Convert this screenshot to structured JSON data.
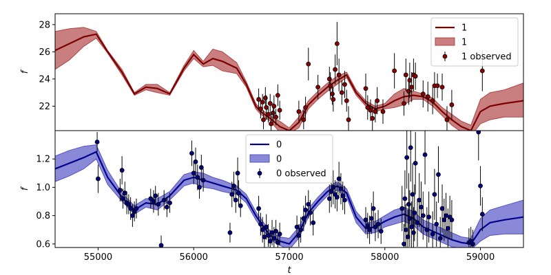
{
  "chart_data": [
    {
      "type": "line",
      "panel": "top",
      "xlabel": "",
      "ylabel": "f",
      "xlim": [
        54550,
        59450
      ],
      "ylim": [
        20.2,
        28.8
      ],
      "yticks": [
        22,
        24,
        26,
        28
      ],
      "colors": {
        "line": "#7b0000",
        "band": "#a52a2a",
        "points": "#8b0000"
      },
      "legend": {
        "placement": "top-right",
        "entries": [
          "1",
          "1",
          "1 observed"
        ]
      },
      "series": [
        {
          "name": "1",
          "kind": "mean",
          "x": [
            54550,
            54700,
            54850,
            54980,
            55100,
            55250,
            55380,
            55500,
            55620,
            55750,
            55900,
            56000,
            56100,
            56200,
            56300,
            56450,
            56550,
            56650,
            56700,
            56800,
            56900,
            57000,
            57100,
            57200,
            57300,
            57400,
            57500,
            57600,
            57700,
            57800,
            57900,
            58000,
            58100,
            58200,
            58300,
            58400,
            58500,
            58600,
            58700,
            58800,
            58900,
            59000,
            59100,
            59250,
            59450
          ],
          "y": [
            26.1,
            26.6,
            27.1,
            27.3,
            26.0,
            24.5,
            22.9,
            23.4,
            23.3,
            22.9,
            24.8,
            25.8,
            25.1,
            25.5,
            25.3,
            24.8,
            23.6,
            22.0,
            21.6,
            21.1,
            20.5,
            20.2,
            20.8,
            22.1,
            22.8,
            23.4,
            23.9,
            24.3,
            23.0,
            22.2,
            21.8,
            22.0,
            22.4,
            22.7,
            22.8,
            22.7,
            22.3,
            21.6,
            21.0,
            20.5,
            20.2,
            21.6,
            22.0,
            22.2,
            22.4
          ]
        },
        {
          "name": "1",
          "kind": "band",
          "x": [
            54550,
            54700,
            54850,
            54980,
            55100,
            55250,
            55380,
            55500,
            55620,
            55750,
            55900,
            56000,
            56100,
            56200,
            56300,
            56450,
            56550,
            56650,
            56700,
            56800,
            56900,
            57000,
            57100,
            57200,
            57300,
            57400,
            57500,
            57600,
            57700,
            57800,
            57900,
            58000,
            58100,
            58200,
            58300,
            58400,
            58500,
            58600,
            58700,
            58800,
            58900,
            59000,
            59100,
            59250,
            59450
          ],
          "upper": [
            27.5,
            27.7,
            27.8,
            27.5,
            26.1,
            24.7,
            23.0,
            23.6,
            23.6,
            23.0,
            25.0,
            26.1,
            25.3,
            26.2,
            26.0,
            25.2,
            23.8,
            22.2,
            21.8,
            21.3,
            20.9,
            20.4,
            21.2,
            22.4,
            23.1,
            23.7,
            24.2,
            24.5,
            23.2,
            22.4,
            22.0,
            22.2,
            22.9,
            23.3,
            23.1,
            22.9,
            22.6,
            21.9,
            21.4,
            20.9,
            20.6,
            22.5,
            23.0,
            23.2,
            23.7
          ],
          "lower": [
            24.7,
            25.4,
            26.4,
            27.0,
            25.9,
            24.3,
            22.8,
            23.2,
            23.0,
            22.8,
            24.6,
            25.5,
            24.9,
            25.0,
            24.6,
            24.4,
            23.4,
            21.8,
            21.4,
            20.9,
            20.1,
            20.0,
            20.4,
            21.8,
            22.5,
            23.1,
            23.6,
            24.1,
            22.8,
            22.0,
            21.6,
            21.8,
            21.9,
            22.1,
            22.5,
            22.5,
            22.0,
            21.3,
            20.6,
            20.1,
            19.8,
            20.7,
            21.0,
            21.2,
            21.2
          ]
        },
        {
          "name": "1 observed",
          "kind": "points",
          "x": [
            56680,
            56700,
            56720,
            56730,
            56750,
            56760,
            56780,
            56800,
            56810,
            56830,
            56840,
            56860,
            56880,
            56900,
            57100,
            57150,
            57170,
            57200,
            57300,
            57420,
            57430,
            57450,
            57460,
            57480,
            57500,
            57520,
            57550,
            57580,
            57600,
            57620,
            57800,
            57820,
            57850,
            57870,
            57900,
            57920,
            57980,
            58100,
            58200,
            58220,
            58250,
            58260,
            58280,
            58300,
            58320,
            58400,
            58450,
            58500,
            58520,
            58550,
            58600,
            58650,
            58700,
            59020
          ],
          "y": [
            22.5,
            21.8,
            22.3,
            21.0,
            22.6,
            21.9,
            21.4,
            22.2,
            20.7,
            21.5,
            22.0,
            21.2,
            22.8,
            21.7,
            21.6,
            21.0,
            21.9,
            25.1,
            23.4,
            24.0,
            23.5,
            22.9,
            22.5,
            24.7,
            26.6,
            24.3,
            23.0,
            23.6,
            22.4,
            21.0,
            23.3,
            21.9,
            21.7,
            21.1,
            21.6,
            22.4,
            21.6,
            24.6,
            22.2,
            24.3,
            23.1,
            23.9,
            23.4,
            24.3,
            24.2,
            22.9,
            22.7,
            22.4,
            23.5,
            23.5,
            23.4,
            21.0,
            22.1,
            24.6
          ],
          "err": [
            0.8,
            0.7,
            0.6,
            0.7,
            0.8,
            0.9,
            0.6,
            0.7,
            0.8,
            0.7,
            0.8,
            0.6,
            0.8,
            0.7,
            0.8,
            0.7,
            0.8,
            1.2,
            0.9,
            0.9,
            1.0,
            0.8,
            0.9,
            1.1,
            1.6,
            1.2,
            0.9,
            1.0,
            0.8,
            1.0,
            1.1,
            0.9,
            0.8,
            0.9,
            0.8,
            1.0,
            0.9,
            1.3,
            0.9,
            1.2,
            1.0,
            1.3,
            1.1,
            1.2,
            1.0,
            1.0,
            1.1,
            1.0,
            1.0,
            0.9,
            1.0,
            1.0,
            1.1,
            1.5
          ]
        }
      ]
    },
    {
      "type": "line",
      "panel": "bottom",
      "xlabel": "t",
      "ylabel": "f",
      "xlim": [
        54550,
        59450
      ],
      "ylim": [
        0.575,
        1.4
      ],
      "yticks": [
        0.6,
        0.8,
        1.0,
        1.2
      ],
      "xticks": [
        55000,
        56000,
        57000,
        58000,
        59000
      ],
      "colors": {
        "line": "#00008b",
        "band": "#3b3bbd",
        "points": "#000080"
      },
      "legend": {
        "placement": "top-center",
        "entries": [
          "0",
          "0",
          "0 observed"
        ]
      },
      "series": [
        {
          "name": "0",
          "kind": "mean",
          "x": [
            54550,
            54700,
            54850,
            54980,
            55100,
            55250,
            55380,
            55500,
            55620,
            55750,
            55900,
            56000,
            56100,
            56200,
            56300,
            56450,
            56550,
            56650,
            56700,
            56800,
            56900,
            57000,
            57100,
            57200,
            57300,
            57400,
            57500,
            57600,
            57700,
            57800,
            57900,
            58000,
            58100,
            58200,
            58300,
            58400,
            58500,
            58600,
            58700,
            58800,
            58900,
            59000,
            59100,
            59250,
            59450
          ],
          "y": [
            1.13,
            1.17,
            1.21,
            1.25,
            1.07,
            0.93,
            0.84,
            0.89,
            0.88,
            0.94,
            1.05,
            1.07,
            1.05,
            1.03,
            1.01,
            0.98,
            0.92,
            0.8,
            0.75,
            0.66,
            0.62,
            0.6,
            0.68,
            0.82,
            0.9,
            0.97,
            1.01,
            0.96,
            0.79,
            0.71,
            0.72,
            0.76,
            0.79,
            0.81,
            0.78,
            0.72,
            0.69,
            0.66,
            0.63,
            0.61,
            0.6,
            0.7,
            0.75,
            0.77,
            0.79
          ]
        },
        {
          "name": "0",
          "kind": "band",
          "x": [
            54550,
            54700,
            54850,
            54980,
            55100,
            55250,
            55380,
            55500,
            55620,
            55750,
            55900,
            56000,
            56100,
            56200,
            56300,
            56450,
            56550,
            56650,
            56700,
            56800,
            56900,
            57000,
            57100,
            57200,
            57300,
            57400,
            57500,
            57600,
            57700,
            57800,
            57900,
            58000,
            58100,
            58200,
            58300,
            58400,
            58500,
            58600,
            58700,
            58800,
            58900,
            59000,
            59100,
            59250,
            59450
          ],
          "upper": [
            1.22,
            1.26,
            1.29,
            1.3,
            1.12,
            0.96,
            0.87,
            0.92,
            0.92,
            0.97,
            1.09,
            1.11,
            1.1,
            1.07,
            1.05,
            1.01,
            0.95,
            0.83,
            0.78,
            0.69,
            0.65,
            0.64,
            0.72,
            0.85,
            0.93,
            1.0,
            1.04,
            0.99,
            0.83,
            0.75,
            0.76,
            0.8,
            0.84,
            0.86,
            0.83,
            0.77,
            0.74,
            0.71,
            0.68,
            0.65,
            0.64,
            0.78,
            0.84,
            0.87,
            0.91
          ],
          "lower": [
            1.04,
            1.08,
            1.13,
            1.2,
            1.02,
            0.9,
            0.81,
            0.86,
            0.84,
            0.91,
            1.01,
            1.03,
            1.0,
            0.99,
            0.97,
            0.95,
            0.89,
            0.77,
            0.72,
            0.63,
            0.59,
            0.56,
            0.64,
            0.79,
            0.87,
            0.94,
            0.98,
            0.93,
            0.75,
            0.67,
            0.68,
            0.72,
            0.74,
            0.76,
            0.73,
            0.67,
            0.64,
            0.61,
            0.58,
            0.57,
            0.56,
            0.62,
            0.66,
            0.67,
            0.67
          ]
        },
        {
          "name": "0 observed",
          "kind": "points",
          "x": [
            54990,
            55000,
            55230,
            55250,
            55260,
            55280,
            55300,
            55320,
            55340,
            55360,
            55380,
            55400,
            55550,
            55580,
            55600,
            55630,
            55660,
            55690,
            55720,
            55750,
            55980,
            56000,
            56020,
            56040,
            56060,
            56080,
            56100,
            56380,
            56400,
            56420,
            56440,
            56460,
            56470,
            56490,
            56680,
            56700,
            56720,
            56740,
            56760,
            56780,
            56800,
            56820,
            56840,
            56860,
            56880,
            56900,
            57080,
            57100,
            57120,
            57150,
            57170,
            57200,
            57220,
            57250,
            57420,
            57440,
            57460,
            57480,
            57500,
            57520,
            57540,
            57560,
            57580,
            57800,
            57820,
            57840,
            57860,
            57880,
            57900,
            57930,
            57960,
            58180,
            58200,
            58210,
            58220,
            58230,
            58240,
            58250,
            58260,
            58270,
            58280,
            58290,
            58300,
            58310,
            58320,
            58340,
            58360,
            58380,
            58400,
            58420,
            58440,
            58460,
            58500,
            58520,
            58540,
            58560,
            58580,
            58600,
            58620,
            58640,
            58660,
            58680,
            58700,
            58880,
            58900,
            58920,
            58980,
            59000,
            59020
          ],
          "y": [
            1.32,
            1.06,
            0.98,
            1.12,
            0.92,
            0.96,
            0.89,
            0.88,
            0.85,
            0.8,
            0.83,
            0.85,
            0.92,
            0.9,
            0.94,
            0.88,
            0.59,
            0.91,
            0.86,
            0.89,
            1.24,
            1.1,
            1.18,
            1.07,
            1.0,
            1.14,
            1.05,
            0.68,
            0.95,
            1.01,
            0.91,
            1.1,
            0.96,
            0.87,
            0.85,
            0.74,
            0.7,
            0.65,
            0.72,
            0.66,
            0.62,
            0.68,
            0.64,
            0.69,
            0.61,
            0.67,
            0.72,
            0.66,
            0.7,
            0.78,
            0.84,
            0.88,
            0.82,
            0.75,
            0.92,
            0.97,
            1.0,
            0.95,
            0.93,
            1.06,
            0.99,
            0.94,
            0.91,
            0.77,
            0.73,
            0.7,
            0.78,
            0.85,
            0.72,
            0.74,
            0.69,
            0.85,
            0.6,
            0.92,
            0.7,
            1.21,
            0.65,
            0.88,
            0.78,
            1.28,
            0.72,
            0.95,
            0.68,
            0.82,
            1.17,
            0.75,
            0.91,
            0.86,
            0.8,
            1.23,
            0.7,
            0.79,
            0.67,
            0.95,
            0.74,
            1.09,
            0.64,
            0.85,
            0.77,
            0.8,
            0.71,
            0.79,
            0.77,
            0.61,
            0.62,
            0.6,
            1.39,
            1.01,
            0.81
          ],
          "err": [
            0.07,
            0.1,
            0.08,
            0.1,
            0.07,
            0.08,
            0.08,
            0.07,
            0.08,
            0.08,
            0.07,
            0.07,
            0.07,
            0.08,
            0.07,
            0.08,
            0.07,
            0.07,
            0.07,
            0.07,
            0.09,
            0.08,
            0.1,
            0.09,
            0.08,
            0.09,
            0.08,
            0.07,
            0.09,
            0.1,
            0.09,
            0.11,
            0.09,
            0.08,
            0.09,
            0.08,
            0.09,
            0.08,
            0.09,
            0.08,
            0.08,
            0.09,
            0.08,
            0.08,
            0.07,
            0.08,
            0.08,
            0.08,
            0.09,
            0.09,
            0.1,
            0.1,
            0.09,
            0.09,
            0.1,
            0.11,
            0.12,
            0.1,
            0.1,
            0.12,
            0.11,
            0.1,
            0.1,
            0.09,
            0.09,
            0.1,
            0.11,
            0.12,
            0.1,
            0.1,
            0.09,
            0.16,
            0.14,
            0.2,
            0.18,
            0.22,
            0.19,
            0.22,
            0.2,
            0.24,
            0.18,
            0.22,
            0.18,
            0.2,
            0.22,
            0.17,
            0.19,
            0.18,
            0.17,
            0.21,
            0.16,
            0.18,
            0.16,
            0.18,
            0.16,
            0.2,
            0.15,
            0.17,
            0.15,
            0.16,
            0.14,
            0.15,
            0.14,
            0.1,
            0.1,
            0.1,
            0.2,
            0.14,
            0.12
          ]
        }
      ]
    }
  ]
}
